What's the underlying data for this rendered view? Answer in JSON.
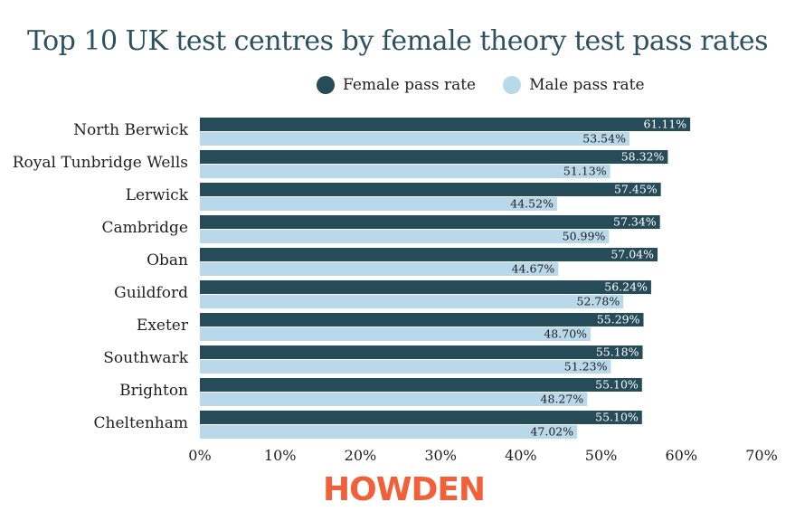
{
  "chart_data": {
    "type": "bar",
    "orientation": "horizontal",
    "title": "Top 10 UK test centres by female theory test pass rates",
    "categories": [
      "North Berwick",
      "Royal Tunbridge Wells",
      "Lerwick",
      "Cambridge",
      "Oban",
      "Guildford",
      "Exeter",
      "Southwark",
      "Brighton",
      "Cheltenham"
    ],
    "series": [
      {
        "name": "Female pass rate",
        "color": "#264b59",
        "values": [
          61.11,
          58.32,
          57.45,
          57.34,
          57.04,
          56.24,
          55.29,
          55.18,
          55.1,
          55.1
        ],
        "labels": [
          "61.11%",
          "58.32%",
          "57.45%",
          "57.34%",
          "57.04%",
          "56.24%",
          "55.29%",
          "55.18%",
          "55.10%",
          "55.10%"
        ]
      },
      {
        "name": "Male pass rate",
        "color": "#b9d9ea",
        "values": [
          53.54,
          51.13,
          44.52,
          50.99,
          44.67,
          52.78,
          48.7,
          51.23,
          48.27,
          47.02
        ],
        "labels": [
          "53.54%",
          "51.13%",
          "44.52%",
          "50.99%",
          "44.67%",
          "52.78%",
          "48.70%",
          "51.23%",
          "48.27%",
          "47.02%"
        ]
      }
    ],
    "xlim": [
      0,
      70
    ],
    "xticks": [
      "0%",
      "10%",
      "20%",
      "30%",
      "40%",
      "50%",
      "60%",
      "70%"
    ],
    "legend_position": "top",
    "grid": false
  },
  "logo_text": "HOWDEN"
}
